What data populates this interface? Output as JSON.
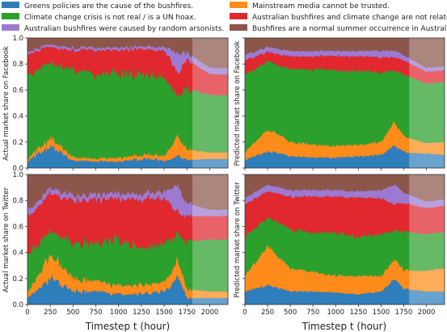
{
  "legend": {
    "items": [
      {
        "label": "Greens policies are the cause of the bushfires.",
        "color": "#2f7ebc"
      },
      {
        "label": "Mainstream media cannot be trusted.",
        "color": "#ff8c1a"
      },
      {
        "label": "Climate change crisis is not real / is a UN hoax.",
        "color": "#2ca02c"
      },
      {
        "label": "Australian bushfires and climate change are not related.",
        "color": "#e0282e"
      },
      {
        "label": "Australian bushfires were caused by random arsonists.",
        "color": "#9d7ad2"
      },
      {
        "label": "Bushfires are a normal summer occurrence in Australia.",
        "color": "#8c564b"
      }
    ]
  },
  "xlabel": "Timestep t (hour)",
  "chart_data": [
    {
      "type": "area",
      "stacked": true,
      "panel": "top-left",
      "ylabel": "Actual market share on Facebook",
      "xlim": [
        0,
        2200
      ],
      "ylim": [
        0,
        1.0
      ],
      "xticks": [
        0,
        250,
        500,
        750,
        1000,
        1250,
        1500,
        1750,
        2000
      ],
      "yticks": [
        0.0,
        0.2,
        0.4,
        0.6,
        0.8,
        1.0
      ],
      "tick_labels_x": false,
      "tick_labels_y": true,
      "prediction_start": 1810,
      "series": [
        {
          "name": "Greens policies are the cause of the bushfires.",
          "x": [
            0,
            250,
            500,
            750,
            1000,
            1250,
            1500,
            1650,
            1750,
            2000,
            2200
          ],
          "values": [
            0.05,
            0.17,
            0.06,
            0.05,
            0.05,
            0.07,
            0.06,
            0.1,
            0.06,
            0.07,
            0.07
          ]
        },
        {
          "name": "Mainstream media cannot be trusted.",
          "x": [
            0,
            250,
            500,
            750,
            1000,
            1250,
            1500,
            1650,
            1750,
            2000,
            2200
          ],
          "values": [
            0.02,
            0.06,
            0.03,
            0.02,
            0.03,
            0.03,
            0.04,
            0.15,
            0.08,
            0.05,
            0.05
          ]
        },
        {
          "name": "Climate change crisis is not real / is a UN hoax.",
          "x": [
            0,
            250,
            500,
            750,
            1000,
            1250,
            1500,
            1650,
            1750,
            2000,
            2200
          ],
          "values": [
            0.65,
            0.58,
            0.66,
            0.66,
            0.64,
            0.63,
            0.6,
            0.3,
            0.48,
            0.44,
            0.44
          ]
        },
        {
          "name": "Australian bushfires and climate change are not related.",
          "x": [
            0,
            250,
            500,
            750,
            1000,
            1250,
            1500,
            1650,
            1750,
            2000,
            2200
          ],
          "values": [
            0.16,
            0.12,
            0.15,
            0.18,
            0.18,
            0.19,
            0.2,
            0.18,
            0.22,
            0.16,
            0.16
          ]
        },
        {
          "name": "Australian bushfires were caused by random arsonists.",
          "x": [
            0,
            250,
            500,
            750,
            1000,
            1250,
            1500,
            1650,
            1750,
            2000,
            2200
          ],
          "values": [
            0.02,
            0.02,
            0.02,
            0.02,
            0.02,
            0.02,
            0.03,
            0.15,
            0.05,
            0.05,
            0.05
          ]
        },
        {
          "name": "Bushfires are a normal summer occurrence in Australia.",
          "x": [
            0,
            250,
            500,
            750,
            1000,
            1250,
            1500,
            1650,
            1750,
            2000,
            2200
          ],
          "values": [
            0.1,
            0.05,
            0.08,
            0.07,
            0.08,
            0.06,
            0.07,
            0.12,
            0.11,
            0.23,
            0.23
          ]
        }
      ]
    },
    {
      "type": "area",
      "stacked": true,
      "panel": "top-right",
      "ylabel": "Predicted market share on Facebook",
      "xlim": [
        0,
        2200
      ],
      "ylim": [
        0,
        1.0
      ],
      "xticks": [
        0,
        250,
        500,
        750,
        1000,
        1250,
        1500,
        1750,
        2000
      ],
      "yticks": [
        0.0,
        0.2,
        0.4,
        0.6,
        0.8,
        1.0
      ],
      "tick_labels_x": false,
      "tick_labels_y": false,
      "prediction_start": 1810,
      "series": [
        {
          "name": "Greens policies are the cause of the bushfires.",
          "x": [
            0,
            250,
            500,
            750,
            1000,
            1250,
            1500,
            1650,
            1750,
            2000,
            2200
          ],
          "values": [
            0.06,
            0.13,
            0.09,
            0.08,
            0.08,
            0.09,
            0.1,
            0.17,
            0.12,
            0.11,
            0.1
          ]
        },
        {
          "name": "Mainstream media cannot be trusted.",
          "x": [
            0,
            250,
            500,
            750,
            1000,
            1250,
            1500,
            1650,
            1750,
            2000,
            2200
          ],
          "values": [
            0.06,
            0.17,
            0.11,
            0.1,
            0.09,
            0.09,
            0.1,
            0.18,
            0.12,
            0.08,
            0.1
          ]
        },
        {
          "name": "Climate change crisis is not real / is a UN hoax.",
          "x": [
            0,
            250,
            500,
            750,
            1000,
            1250,
            1500,
            1650,
            1750,
            2000,
            2200
          ],
          "values": [
            0.6,
            0.52,
            0.56,
            0.58,
            0.58,
            0.57,
            0.53,
            0.4,
            0.48,
            0.46,
            0.46
          ]
        },
        {
          "name": "Australian bushfires and climate change are not related.",
          "x": [
            0,
            250,
            500,
            750,
            1000,
            1250,
            1500,
            1650,
            1750,
            2000,
            2200
          ],
          "values": [
            0.11,
            0.07,
            0.1,
            0.1,
            0.11,
            0.11,
            0.12,
            0.1,
            0.11,
            0.09,
            0.09
          ]
        },
        {
          "name": "Australian bushfires were caused by random arsonists.",
          "x": [
            0,
            250,
            500,
            750,
            1000,
            1250,
            1500,
            1650,
            1750,
            2000,
            2200
          ],
          "values": [
            0.04,
            0.04,
            0.04,
            0.04,
            0.04,
            0.04,
            0.05,
            0.05,
            0.04,
            0.03,
            0.03
          ]
        },
        {
          "name": "Bushfires are a normal summer occurrence in Australia.",
          "x": [
            0,
            250,
            500,
            750,
            1000,
            1250,
            1500,
            1650,
            1750,
            2000,
            2200
          ],
          "values": [
            0.13,
            0.07,
            0.1,
            0.1,
            0.1,
            0.1,
            0.1,
            0.1,
            0.13,
            0.23,
            0.22
          ]
        }
      ]
    },
    {
      "type": "area",
      "stacked": true,
      "panel": "bottom-left",
      "ylabel": "Actual market share on Twitter",
      "xlim": [
        0,
        2200
      ],
      "ylim": [
        0,
        1.0
      ],
      "xticks": [
        0,
        250,
        500,
        750,
        1000,
        1250,
        1500,
        1750,
        2000
      ],
      "yticks": [
        0.0,
        0.2,
        0.4,
        0.6,
        0.8,
        1.0
      ],
      "tick_labels_x": true,
      "tick_labels_y": true,
      "prediction_start": 1810,
      "series": [
        {
          "name": "Greens policies are the cause of the bushfires.",
          "x": [
            0,
            250,
            500,
            750,
            1000,
            1250,
            1500,
            1650,
            1750,
            2000,
            2200
          ],
          "values": [
            0.05,
            0.2,
            0.1,
            0.1,
            0.08,
            0.08,
            0.1,
            0.22,
            0.05,
            0.05,
            0.05
          ]
        },
        {
          "name": "Mainstream media cannot be trusted.",
          "x": [
            0,
            250,
            500,
            750,
            1000,
            1250,
            1500,
            1650,
            1750,
            2000,
            2200
          ],
          "values": [
            0.04,
            0.18,
            0.1,
            0.08,
            0.07,
            0.07,
            0.07,
            0.13,
            0.07,
            0.05,
            0.05
          ]
        },
        {
          "name": "Climate change crisis is not real / is a UN hoax.",
          "x": [
            0,
            250,
            500,
            750,
            1000,
            1250,
            1500,
            1650,
            1750,
            2000,
            2200
          ],
          "values": [
            0.3,
            0.18,
            0.28,
            0.3,
            0.35,
            0.28,
            0.3,
            0.22,
            0.36,
            0.4,
            0.4
          ]
        },
        {
          "name": "Australian bushfires and climate change are not related.",
          "x": [
            0,
            250,
            500,
            750,
            1000,
            1250,
            1500,
            1650,
            1750,
            2000,
            2200
          ],
          "values": [
            0.28,
            0.3,
            0.32,
            0.32,
            0.32,
            0.38,
            0.35,
            0.15,
            0.2,
            0.18,
            0.18
          ]
        },
        {
          "name": "Australian bushfires were caused by random arsonists.",
          "x": [
            0,
            250,
            500,
            750,
            1000,
            1250,
            1500,
            1650,
            1750,
            2000,
            2200
          ],
          "values": [
            0.05,
            0.04,
            0.04,
            0.04,
            0.04,
            0.04,
            0.05,
            0.2,
            0.1,
            0.05,
            0.05
          ]
        },
        {
          "name": "Bushfires are a normal summer occurrence in Australia.",
          "x": [
            0,
            250,
            500,
            750,
            1000,
            1250,
            1500,
            1650,
            1750,
            2000,
            2200
          ],
          "values": [
            0.28,
            0.1,
            0.16,
            0.16,
            0.14,
            0.15,
            0.13,
            0.08,
            0.22,
            0.27,
            0.27
          ]
        }
      ]
    },
    {
      "type": "area",
      "stacked": true,
      "panel": "bottom-right",
      "ylabel": "Predicted market share on Twitter",
      "xlim": [
        0,
        2200
      ],
      "ylim": [
        0,
        1.0
      ],
      "xticks": [
        0,
        250,
        500,
        750,
        1000,
        1250,
        1500,
        1750,
        2000
      ],
      "yticks": [
        0.0,
        0.2,
        0.4,
        0.6,
        0.8,
        1.0
      ],
      "tick_labels_x": true,
      "tick_labels_y": false,
      "prediction_start": 1810,
      "series": [
        {
          "name": "Greens policies are the cause of the bushfires.",
          "x": [
            0,
            250,
            500,
            750,
            1000,
            1250,
            1500,
            1650,
            1750,
            2000,
            2200
          ],
          "values": [
            0.1,
            0.15,
            0.1,
            0.1,
            0.09,
            0.08,
            0.1,
            0.2,
            0.12,
            0.1,
            0.1
          ]
        },
        {
          "name": "Mainstream media cannot be trusted.",
          "x": [
            0,
            250,
            500,
            750,
            1000,
            1250,
            1500,
            1650,
            1750,
            2000,
            2200
          ],
          "values": [
            0.12,
            0.3,
            0.18,
            0.15,
            0.13,
            0.14,
            0.12,
            0.15,
            0.14,
            0.16,
            0.18
          ]
        },
        {
          "name": "Climate change crisis is not real / is a UN hoax.",
          "x": [
            0,
            250,
            500,
            750,
            1000,
            1250,
            1500,
            1650,
            1750,
            2000,
            2200
          ],
          "values": [
            0.3,
            0.22,
            0.3,
            0.3,
            0.33,
            0.3,
            0.32,
            0.22,
            0.3,
            0.28,
            0.28
          ]
        },
        {
          "name": "Australian bushfires and climate change are not related.",
          "x": [
            0,
            250,
            500,
            750,
            1000,
            1250,
            1500,
            1650,
            1750,
            2000,
            2200
          ],
          "values": [
            0.25,
            0.2,
            0.25,
            0.28,
            0.28,
            0.3,
            0.28,
            0.2,
            0.22,
            0.2,
            0.2
          ]
        },
        {
          "name": "Australian bushfires were caused by random arsonists.",
          "x": [
            0,
            250,
            500,
            750,
            1000,
            1250,
            1500,
            1650,
            1750,
            2000,
            2200
          ],
          "values": [
            0.05,
            0.05,
            0.05,
            0.05,
            0.05,
            0.05,
            0.06,
            0.15,
            0.08,
            0.05,
            0.05
          ]
        },
        {
          "name": "Bushfires are a normal summer occurrence in Australia.",
          "x": [
            0,
            250,
            500,
            750,
            1000,
            1250,
            1500,
            1650,
            1750,
            2000,
            2200
          ],
          "values": [
            0.18,
            0.08,
            0.12,
            0.12,
            0.12,
            0.13,
            0.12,
            0.08,
            0.14,
            0.21,
            0.19
          ]
        }
      ]
    }
  ]
}
